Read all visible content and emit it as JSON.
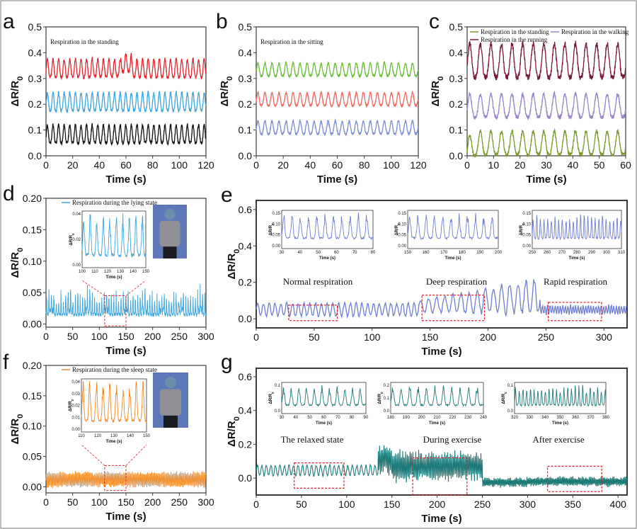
{
  "figure": {
    "border_color": "#7a7a7a",
    "frame_color": "#3a3a3a"
  },
  "chart_data": [
    {
      "id": "a",
      "type": "line",
      "letter": "a",
      "xlabel": "Time (s)",
      "ylabel": "ΔR/R0",
      "xlim": [
        0,
        120
      ],
      "ylim": [
        0,
        0.5
      ],
      "xticks": [
        0,
        20,
        40,
        60,
        80,
        100,
        120
      ],
      "yticks": [
        0.0,
        0.1,
        0.2,
        0.3,
        0.4,
        0.5
      ],
      "legend": [
        {
          "label": "Respiration in the standing",
          "color": ""
        }
      ],
      "series": [
        {
          "color": "#e8262f",
          "base": 0.34,
          "amp": 0.035,
          "period": 4.2
        },
        {
          "color": "#3ea6e0",
          "base": 0.21,
          "amp": 0.035,
          "period": 4.2
        },
        {
          "color": "#111111",
          "base": 0.085,
          "amp": 0.035,
          "period": 4.2
        }
      ]
    },
    {
      "id": "b",
      "type": "line",
      "letter": "b",
      "xlabel": "Time (s)",
      "ylabel": "ΔR/R0",
      "xlim": [
        0,
        120
      ],
      "ylim": [
        0,
        0.5
      ],
      "xticks": [
        0,
        20,
        40,
        60,
        80,
        100,
        120
      ],
      "yticks": [
        0.0,
        0.1,
        0.2,
        0.3,
        0.4,
        0.5
      ],
      "legend": [
        {
          "label": "Respiration in the sitting",
          "color": ""
        }
      ],
      "series": [
        {
          "color": "#6cbf3a",
          "base": 0.335,
          "amp": 0.025,
          "period": 5.2
        },
        {
          "color": "#ef6b63",
          "base": 0.22,
          "amp": 0.025,
          "period": 5.2
        },
        {
          "color": "#7f8fd6",
          "base": 0.11,
          "amp": 0.025,
          "period": 5.2
        }
      ]
    },
    {
      "id": "c",
      "type": "line",
      "letter": "c",
      "xlabel": "Time (s)",
      "ylabel": "ΔR/R0",
      "xlim": [
        0,
        60
      ],
      "ylim": [
        0,
        0.5
      ],
      "xticks": [
        0,
        10,
        20,
        30,
        40,
        50,
        60
      ],
      "yticks": [
        0.0,
        0.1,
        0.2,
        0.3,
        0.4,
        0.5
      ],
      "legend": [
        {
          "label": "Respiration in the standing",
          "color": "#7a9a2e"
        },
        {
          "label": "Respiration in the walking",
          "color": "#9a86c9"
        },
        {
          "label": "Respiration in the running",
          "color": "#7a1a35"
        }
      ],
      "series": [
        {
          "color": "#7a1a35",
          "base": 0.37,
          "amp": 0.065,
          "period": 4.0
        },
        {
          "color": "#9a86c9",
          "base": 0.195,
          "amp": 0.045,
          "period": 4.0
        },
        {
          "color": "#7a9a2e",
          "base": 0.05,
          "amp": 0.045,
          "period": 4.0
        }
      ]
    },
    {
      "id": "d",
      "type": "line",
      "letter": "d",
      "xlabel": "Time (s)",
      "ylabel": "ΔR/R0",
      "xlim": [
        0,
        300
      ],
      "ylim": [
        -0.005,
        0.2
      ],
      "xticks": [
        0,
        50,
        100,
        150,
        200,
        250,
        300
      ],
      "yticks": [
        0.0,
        0.05,
        0.1,
        0.15,
        0.2
      ],
      "yticklabels": [
        "0.00",
        "0.05",
        "0.10",
        "0.15",
        "0.20"
      ],
      "legend": [
        {
          "label": "Respiration during the lying state",
          "color": "#3ea6e0"
        }
      ],
      "series": [
        {
          "color": "#3ea6e0",
          "base": 0.02,
          "amp": 0.015,
          "period": 4.5
        }
      ],
      "inset": {
        "xlabel": "Time (s)",
        "ylabel": "ΔR/R0",
        "xticks": [
          100,
          110,
          120,
          130,
          140,
          150
        ],
        "yticks": [
          "0.04",
          "0.02",
          "0.00"
        ]
      }
    },
    {
      "id": "e",
      "type": "line",
      "letter": "e",
      "xlabel": "Time (s)",
      "ylabel": "ΔR/R0",
      "xlim": [
        0,
        320
      ],
      "ylim": [
        -0.05,
        0.65
      ],
      "xticks": [
        0,
        50,
        100,
        150,
        200,
        250,
        300
      ],
      "yticks": [
        0.0,
        0.2,
        0.4,
        0.6
      ],
      "legend": [],
      "series": [
        {
          "color": "#6f7fd0",
          "base": 0.05,
          "amp": 0.035,
          "period": 5.0
        }
      ],
      "annotations": [
        "Normal respiration",
        "Deep respiration",
        "Rapid respiration"
      ],
      "insets": [
        {
          "xticks": [
            "30",
            "40",
            "50",
            "60",
            "70",
            "80"
          ],
          "yticks": [
            "0.15",
            "0.10",
            "0.05",
            "0.00"
          ]
        },
        {
          "xticks": [
            "150",
            "160",
            "170",
            "180",
            "190",
            "200"
          ],
          "yticks": [
            "0.15",
            "0.10",
            "0.05",
            "0.00"
          ]
        },
        {
          "xticks": [
            "250",
            "260",
            "270",
            "280",
            "290",
            "300",
            "310"
          ],
          "yticks": [
            "0.15",
            "0.10",
            "0.05",
            "0.00"
          ]
        }
      ],
      "inset_xlabel": "Time (s)",
      "inset_ylabel": "ΔR/R0"
    },
    {
      "id": "f",
      "type": "line",
      "letter": "f",
      "xlabel": "Time (s)",
      "ylabel": "ΔR/R0",
      "xlim": [
        0,
        300
      ],
      "ylim": [
        -0.01,
        0.2
      ],
      "xticks": [
        0,
        50,
        100,
        150,
        200,
        250,
        300
      ],
      "yticks": [
        0.0,
        0.05,
        0.1,
        0.15,
        0.2
      ],
      "yticklabels": [
        "0.00",
        "0.05",
        "0.10",
        "0.15",
        "0.20"
      ],
      "legend": [
        {
          "label": "Respiration during the sleep state",
          "color": "#ee8a2a"
        }
      ],
      "series": [
        {
          "color": "#ee8a2a",
          "base": 0.015,
          "amp": 0.01,
          "period": 3.0
        }
      ],
      "inset": {
        "xlabel": "Time (s)",
        "ylabel": "ΔR/R0",
        "xticks": [
          110,
          120,
          130,
          140,
          150
        ],
        "yticks": [
          "0.04",
          "0.03",
          "0.02",
          "0.01",
          "0.00"
        ]
      }
    },
    {
      "id": "g",
      "type": "line",
      "letter": "g",
      "xlabel": "Time (s)",
      "ylabel": "ΔR/R0",
      "xlim": [
        0,
        410
      ],
      "ylim": [
        -0.1,
        0.65
      ],
      "xticks": [
        0,
        50,
        100,
        150,
        200,
        250,
        300,
        350,
        400
      ],
      "yticks": [
        0.0,
        0.2,
        0.4,
        0.6
      ],
      "legend": [],
      "series": [
        {
          "color": "#1e7a78",
          "base": 0.04,
          "amp": 0.035,
          "period": 5.0
        }
      ],
      "annotations": [
        "The relaxed state",
        "During exercise",
        "After exercise"
      ],
      "insets": [
        {
          "xticks": [
            "30",
            "40",
            "50",
            "60",
            "70",
            "80",
            "90"
          ],
          "yticks": [
            "0.1",
            "0.0"
          ]
        },
        {
          "xticks": [
            "180",
            "190",
            "200",
            "210",
            "220",
            "230",
            "240"
          ],
          "yticks": [
            "0.2",
            "0.1",
            "0.0"
          ]
        },
        {
          "xticks": [
            "320",
            "330",
            "340",
            "350",
            "360",
            "370",
            "380"
          ],
          "yticks": [
            "0.1",
            "0.0"
          ]
        }
      ],
      "inset_xlabel": "Time (s)",
      "inset_ylabel": "ΔR/R0"
    }
  ]
}
